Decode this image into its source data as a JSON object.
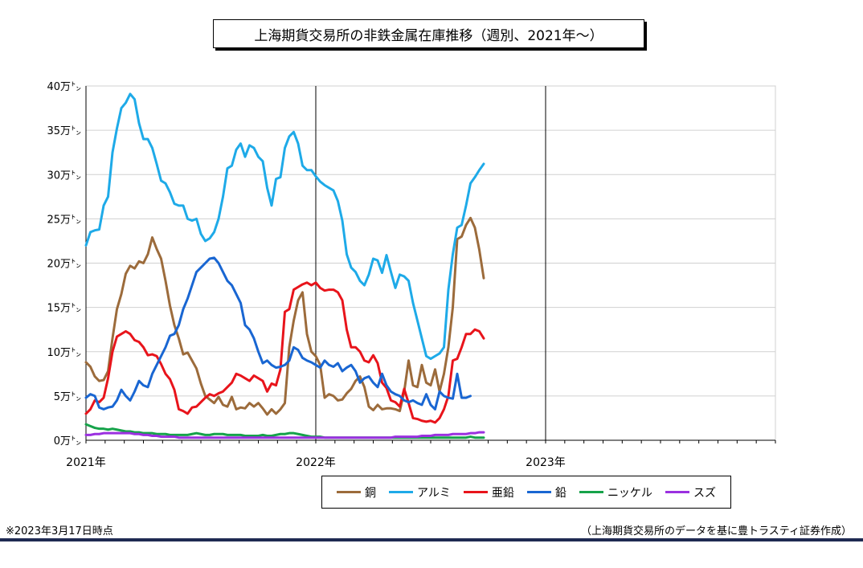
{
  "title": "上海期貨交易所の非鉄金属在庫推移（週別、2021年～）",
  "footnote": "※2023年3月17日時点",
  "source": "（上海期貨交易所のデータを基に豊トラスティ証券作成）",
  "chart_data": {
    "type": "line",
    "title": "上海期貨交易所の非鉄金属在庫推移（週別、2021年～）",
    "y_ticks": [
      "0万㌧",
      "5万㌧",
      "10万㌧",
      "15万㌧",
      "20万㌧",
      "25万㌧",
      "30万㌧",
      "35万㌧",
      "40万㌧"
    ],
    "x_ticks": [
      "2021年",
      "2022年",
      "2023年"
    ],
    "ylim": [
      0,
      40
    ],
    "xlim": [
      0,
      156
    ],
    "year_dividers": [
      52,
      104
    ],
    "grid": true,
    "legend_position": "bottom",
    "series": [
      {
        "name": "銅",
        "color": "#9c6b3b",
        "values": [
          8.8,
          8.3,
          7.2,
          6.7,
          6.8,
          7.8,
          11.5,
          14.8,
          16.5,
          18.8,
          19.7,
          19.4,
          20.2,
          20.0,
          21.0,
          22.9,
          21.6,
          20.5,
          18.0,
          15.2,
          13.0,
          11.5,
          9.7,
          9.9,
          9.0,
          8.1,
          6.4,
          5.0,
          4.6,
          4.2,
          4.9,
          4.0,
          3.8,
          4.9,
          3.5,
          3.7,
          3.6,
          4.2,
          3.8,
          4.2,
          3.6,
          2.9,
          3.5,
          3.0,
          3.5,
          4.2,
          10.5,
          13.5,
          15.8,
          16.7,
          12.0,
          10.0,
          9.5,
          8.5,
          4.8,
          5.2,
          5.0,
          4.5,
          4.6,
          5.3,
          5.8,
          6.7,
          7.2,
          6.0,
          3.8,
          3.4,
          4.0,
          3.5,
          3.6,
          3.6,
          3.5,
          3.3,
          5.5,
          9.0,
          6.2,
          6.0,
          8.5,
          6.5,
          6.2,
          8.0,
          5.5,
          7.5,
          10.5,
          15.0,
          22.7,
          23.0,
          24.3,
          25.1,
          24.0,
          21.5,
          18.3
        ],
        "x_start": 0
      },
      {
        "name": "アルミ",
        "color": "#1eaae8",
        "values": [
          22.0,
          23.5,
          23.7,
          23.8,
          26.5,
          27.5,
          32.5,
          35.2,
          37.5,
          38.1,
          39.1,
          38.5,
          35.8,
          34.0,
          34.0,
          33.0,
          31.2,
          29.3,
          29.0,
          28.0,
          26.7,
          26.5,
          26.5,
          25.0,
          24.8,
          25.0,
          23.3,
          22.5,
          22.8,
          23.5,
          25.0,
          27.5,
          30.7,
          31.0,
          32.8,
          33.5,
          32.0,
          33.3,
          33.0,
          32.0,
          31.5,
          28.5,
          26.5,
          29.5,
          29.7,
          33.0,
          34.3,
          34.8,
          33.5,
          31.0,
          30.5,
          30.5,
          29.8,
          29.2,
          28.8,
          28.5,
          28.2,
          27.0,
          24.8,
          21.0,
          19.5,
          19.0,
          18.0,
          17.5,
          18.7,
          20.5,
          20.3,
          18.9,
          20.9,
          19.0,
          17.2,
          18.7,
          18.5,
          18.0,
          15.5,
          13.5,
          11.5,
          9.5,
          9.2,
          9.5,
          9.8,
          10.5,
          17.0,
          21.0,
          24.0,
          24.3,
          26.5,
          29.0,
          29.7,
          30.5,
          31.2
        ],
        "x_start": 0
      },
      {
        "name": "亜鉛",
        "color": "#e8141b",
        "values": [
          3.0,
          3.5,
          4.5,
          4.3,
          4.8,
          7.0,
          10.0,
          11.7,
          12.0,
          12.3,
          12.0,
          11.3,
          11.1,
          10.5,
          9.6,
          9.7,
          9.5,
          8.6,
          7.5,
          6.9,
          5.7,
          3.5,
          3.3,
          3.0,
          3.7,
          3.8,
          4.3,
          4.8,
          5.2,
          5.0,
          5.3,
          5.5,
          6.0,
          6.5,
          7.5,
          7.3,
          7.0,
          6.7,
          7.3,
          7.0,
          6.7,
          5.5,
          6.4,
          6.2,
          8.0,
          14.5,
          14.8,
          17.0,
          17.3,
          17.6,
          17.8,
          17.5,
          17.8,
          17.2,
          16.9,
          17.0,
          17.0,
          16.7,
          15.8,
          12.5,
          10.5,
          10.5,
          10.0,
          9.0,
          8.8,
          9.6,
          8.7,
          6.5,
          5.9,
          4.5,
          4.3,
          3.8,
          5.8,
          4.2,
          2.5,
          2.4,
          2.2,
          2.1,
          2.2,
          2.0,
          2.5,
          3.5,
          5.0,
          9.0,
          9.2,
          10.5,
          12.0,
          12.0,
          12.5,
          12.3,
          11.5
        ],
        "x_start": 0
      },
      {
        "name": "鉛",
        "color": "#1966d2",
        "values": [
          4.8,
          5.2,
          5.0,
          3.7,
          3.5,
          3.7,
          3.8,
          4.5,
          5.7,
          5.0,
          4.5,
          5.5,
          6.7,
          6.2,
          6.0,
          7.5,
          8.5,
          9.5,
          10.5,
          11.8,
          12.0,
          13.0,
          14.8,
          16.0,
          17.5,
          19.0,
          19.5,
          20.0,
          20.5,
          20.6,
          20.0,
          19.0,
          18.0,
          17.5,
          16.5,
          15.5,
          13.0,
          12.5,
          11.5,
          10.0,
          8.7,
          9.0,
          8.5,
          8.2,
          8.3,
          8.5,
          9.0,
          10.5,
          10.2,
          9.3,
          9.0,
          8.8,
          8.5,
          8.2,
          9.0,
          8.5,
          8.3,
          8.7,
          7.8,
          8.2,
          8.5,
          7.8,
          6.5,
          7.0,
          7.2,
          6.5,
          6.0,
          7.5,
          6.2,
          5.5,
          5.2,
          5.0,
          4.5,
          4.3,
          4.5,
          4.2,
          4.0,
          5.2,
          4.0,
          3.5,
          5.5,
          5.0,
          4.8,
          4.7,
          7.5,
          4.8,
          4.8,
          5.0
        ],
        "x_start": 0
      },
      {
        "name": "ニッケル",
        "color": "#16a34a",
        "values": [
          1.8,
          1.6,
          1.4,
          1.3,
          1.3,
          1.2,
          1.3,
          1.2,
          1.1,
          1.0,
          1.0,
          0.9,
          0.9,
          0.8,
          0.8,
          0.8,
          0.7,
          0.7,
          0.7,
          0.6,
          0.6,
          0.6,
          0.6,
          0.6,
          0.7,
          0.8,
          0.7,
          0.6,
          0.6,
          0.7,
          0.7,
          0.7,
          0.6,
          0.6,
          0.6,
          0.6,
          0.5,
          0.5,
          0.5,
          0.5,
          0.6,
          0.5,
          0.5,
          0.6,
          0.7,
          0.7,
          0.8,
          0.8,
          0.7,
          0.6,
          0.5,
          0.4,
          0.4,
          0.4,
          0.3,
          0.3,
          0.3,
          0.3,
          0.3,
          0.3,
          0.3,
          0.3,
          0.3,
          0.3,
          0.3,
          0.3,
          0.3,
          0.3,
          0.3,
          0.3,
          0.3,
          0.3,
          0.3,
          0.3,
          0.3,
          0.3,
          0.3,
          0.3,
          0.3,
          0.3,
          0.3,
          0.3,
          0.3,
          0.3,
          0.3,
          0.3,
          0.3,
          0.4,
          0.3,
          0.3,
          0.3
        ],
        "x_start": 0
      },
      {
        "name": "スズ",
        "color": "#9b30e0",
        "values": [
          0.6,
          0.6,
          0.7,
          0.7,
          0.8,
          0.8,
          0.8,
          0.8,
          0.8,
          0.8,
          0.8,
          0.7,
          0.7,
          0.6,
          0.6,
          0.5,
          0.5,
          0.4,
          0.4,
          0.4,
          0.4,
          0.3,
          0.3,
          0.3,
          0.3,
          0.3,
          0.3,
          0.3,
          0.3,
          0.3,
          0.3,
          0.3,
          0.3,
          0.3,
          0.3,
          0.3,
          0.3,
          0.3,
          0.3,
          0.3,
          0.3,
          0.3,
          0.3,
          0.3,
          0.3,
          0.3,
          0.3,
          0.3,
          0.3,
          0.3,
          0.3,
          0.3,
          0.3,
          0.3,
          0.3,
          0.3,
          0.3,
          0.3,
          0.3,
          0.3,
          0.3,
          0.3,
          0.3,
          0.3,
          0.3,
          0.3,
          0.3,
          0.3,
          0.3,
          0.3,
          0.4,
          0.4,
          0.4,
          0.4,
          0.4,
          0.4,
          0.5,
          0.5,
          0.5,
          0.6,
          0.6,
          0.6,
          0.6,
          0.7,
          0.7,
          0.7,
          0.7,
          0.8,
          0.8,
          0.9,
          0.9
        ],
        "x_start": 0
      }
    ]
  }
}
